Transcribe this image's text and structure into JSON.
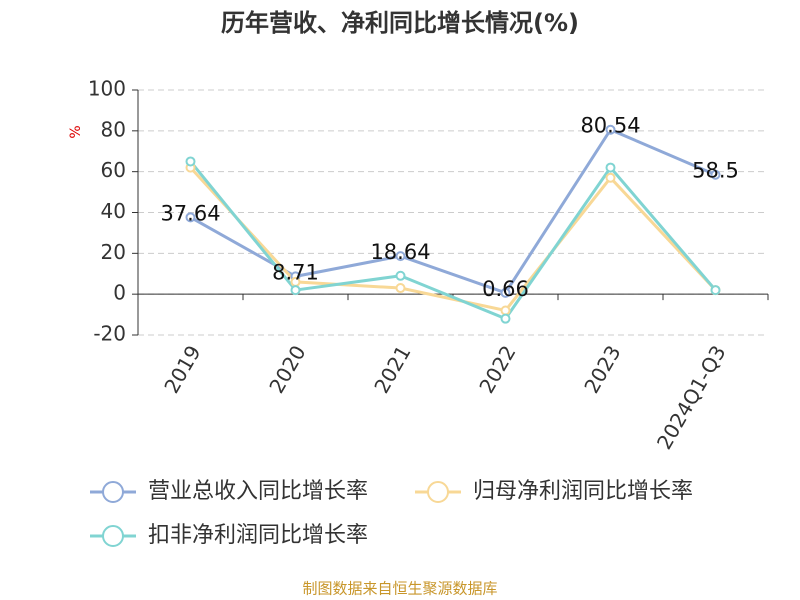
{
  "chart_data": {
    "type": "line",
    "title": "历年营收、净利同比增长情况(%)",
    "y_label": "%",
    "categories": [
      "2019",
      "2020",
      "2021",
      "2022",
      "2023",
      "2024Q1-Q3"
    ],
    "series": [
      {
        "name": "营业总收入同比增长率",
        "color": "#8fa9d8",
        "values": [
          37.64,
          8.71,
          18.64,
          0.66,
          80.54,
          58.5
        ],
        "show_labels": true
      },
      {
        "name": "归母净利润同比增长率",
        "color": "#f8d896",
        "values": [
          62,
          6,
          3,
          -8,
          57,
          2
        ],
        "show_labels": false
      },
      {
        "name": "扣非净利润同比增长率",
        "color": "#80d4d2",
        "values": [
          65,
          2,
          9,
          -12,
          62,
          2
        ],
        "show_labels": false
      }
    ],
    "ylim": [
      -20,
      100
    ],
    "yticks": [
      -20,
      0,
      20,
      40,
      60,
      80,
      100
    ],
    "grid": true,
    "source": "制图数据来自恒生聚源数据库"
  }
}
